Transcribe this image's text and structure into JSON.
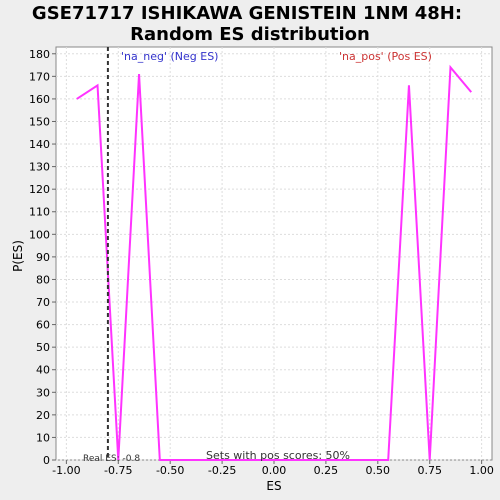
{
  "chart_data": {
    "type": "line",
    "title_line1": "GSE71717 ISHIKAWA GENISTEIN 1NM 48H:",
    "title_line2": "Random ES distribution",
    "xlabel": "ES",
    "ylabel": "P(ES)",
    "xlim": [
      -1.05,
      1.05
    ],
    "ylim": [
      0,
      183
    ],
    "x_ticks": [
      -1.0,
      -0.75,
      -0.5,
      -0.25,
      0.0,
      0.25,
      0.5,
      0.75,
      1.0
    ],
    "x_tick_labels": [
      "-1.00",
      "-0.75",
      "-0.50",
      "-0.25",
      "0.00",
      "0.25",
      "0.50",
      "0.75",
      "1.00"
    ],
    "y_ticks": [
      0,
      10,
      20,
      30,
      40,
      50,
      60,
      70,
      80,
      90,
      100,
      110,
      120,
      130,
      140,
      150,
      160,
      170,
      180
    ],
    "y_tick_labels": [
      "0",
      "10",
      "20",
      "30",
      "40",
      "50",
      "60",
      "70",
      "80",
      "90",
      "100",
      "110",
      "120",
      "130",
      "140",
      "150",
      "160",
      "170",
      "180"
    ],
    "grid": true,
    "series": [
      {
        "color": "#ff33ff",
        "x": [
          -0.95,
          -0.85,
          -0.75,
          -0.65,
          -0.55,
          -0.45,
          -0.35,
          -0.25,
          -0.15,
          -0.05,
          0.05,
          0.15,
          0.25,
          0.35,
          0.45,
          0.55,
          0.65,
          0.75,
          0.85,
          0.95
        ],
        "y": [
          160,
          166,
          0,
          171,
          0,
          0,
          0,
          0,
          0,
          0,
          0,
          0,
          0,
          0,
          0,
          0,
          166,
          0,
          174,
          163
        ]
      }
    ],
    "real_es": -0.8,
    "real_es_label": "Real ES: -0.8",
    "neg_label": "'na_neg' (Neg ES)",
    "pos_label": "'na_pos' (Pos ES)",
    "bottom_annotation": "Sets with pos scores: 50%",
    "colors": {
      "series": "#ff33ff",
      "neg_label": "#3333cc",
      "pos_label": "#cc3333",
      "real_es_line": "#333333",
      "grid": "#dddddd"
    }
  }
}
